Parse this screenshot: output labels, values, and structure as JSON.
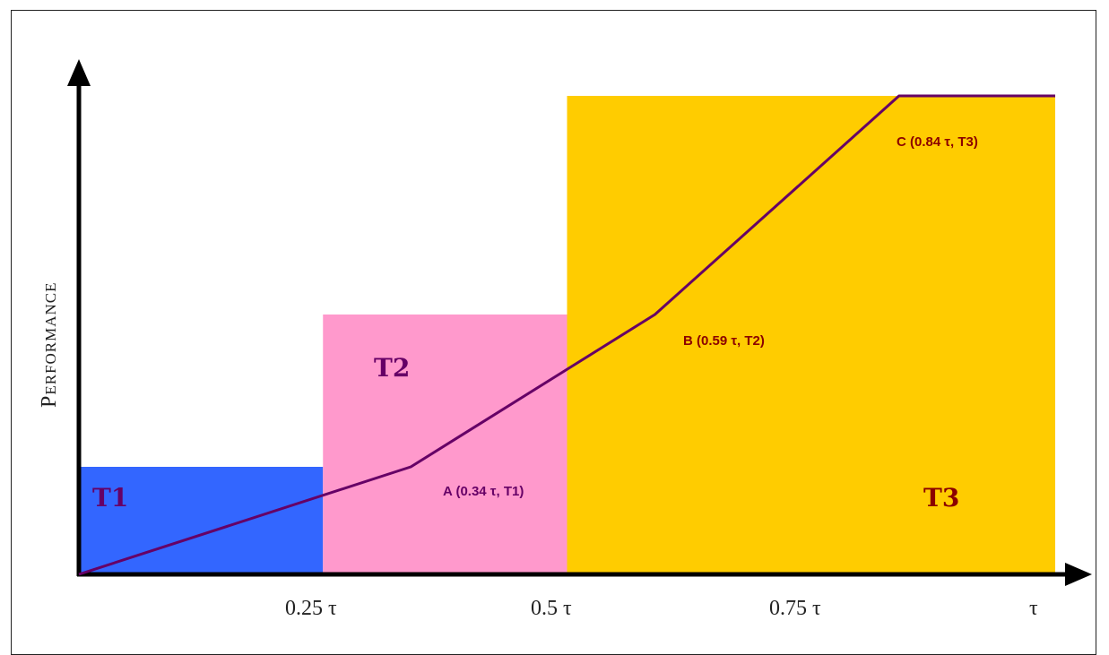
{
  "chart_data": {
    "type": "area",
    "title": "",
    "xlabel": "",
    "ylabel": "Performance",
    "x_ticks": [
      "0.25 τ",
      "0.5 τ",
      "0.75 τ",
      "τ"
    ],
    "regions": [
      {
        "label": "T1",
        "x_start": 0.0,
        "x_end": 0.25,
        "level": "T1",
        "color": "#3366ff"
      },
      {
        "label": "T2",
        "x_start": 0.25,
        "x_end": 0.5,
        "level": "T2",
        "color": "#ff99cc"
      },
      {
        "label": "T3",
        "x_start": 0.5,
        "x_end": 1.0,
        "level": "T3",
        "color": "#ffcc00"
      }
    ],
    "series": [
      {
        "line_color": "#660066",
        "points": [
          {
            "x": 0.0,
            "y": 0.0
          },
          {
            "x": 0.34,
            "y": "T1"
          },
          {
            "x": 0.59,
            "y": "T2"
          },
          {
            "x": 0.84,
            "y": "T3"
          },
          {
            "x": 1.0,
            "y": "T3"
          }
        ]
      }
    ],
    "annotations": [
      {
        "text": "A (0.34 τ, T1)",
        "x": 0.34,
        "y": "T1",
        "color": "#660066"
      },
      {
        "text": "B (0.59 τ, T2)",
        "x": 0.59,
        "y": "T2",
        "color": "#8b0000"
      },
      {
        "text": "C (0.84 τ, T3)",
        "x": 0.84,
        "y": "T3",
        "color": "#8b0000"
      }
    ],
    "region_label_colors": {
      "T1": "#660066",
      "T2": "#660066",
      "T3": "#8b0000"
    },
    "axis_color": "#000000"
  }
}
